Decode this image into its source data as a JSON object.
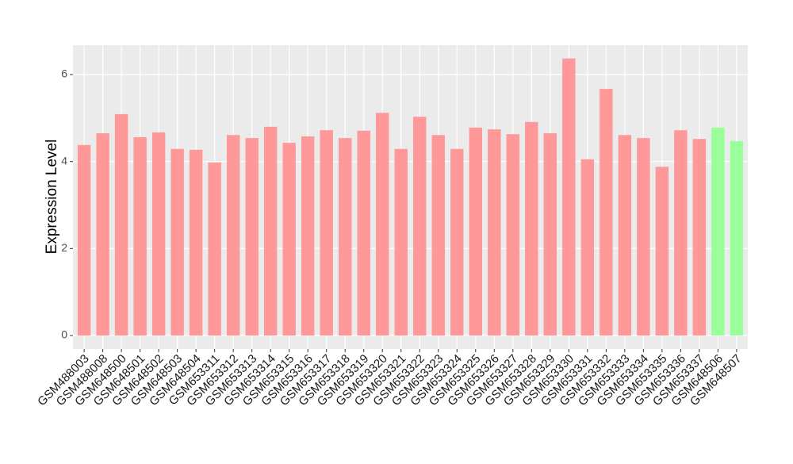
{
  "chart_data": {
    "type": "bar",
    "y_label": "Expression Level",
    "categories": [
      "GSM488003",
      "GSM488008",
      "GSM648500",
      "GSM648501",
      "GSM648502",
      "GSM648503",
      "GSM648504",
      "GSM653311",
      "GSM653312",
      "GSM653313",
      "GSM653314",
      "GSM653315",
      "GSM653316",
      "GSM653317",
      "GSM653318",
      "GSM653319",
      "GSM653320",
      "GSM653321",
      "GSM653322",
      "GSM653323",
      "GSM653324",
      "GSM653325",
      "GSM653326",
      "GSM653327",
      "GSM653328",
      "GSM653329",
      "GSM653330",
      "GSM653331",
      "GSM653332",
      "GSM653333",
      "GSM653334",
      "GSM653335",
      "GSM653336",
      "GSM653337",
      "GSM648506",
      "GSM648507"
    ],
    "values": [
      4.38,
      4.65,
      5.09,
      4.56,
      4.67,
      4.29,
      4.27,
      3.98,
      4.61,
      4.54,
      4.8,
      4.43,
      4.58,
      4.72,
      4.54,
      4.71,
      5.12,
      4.29,
      5.03,
      4.61,
      4.29,
      4.78,
      4.74,
      4.63,
      4.91,
      4.65,
      6.37,
      4.05,
      5.67,
      4.61,
      4.54,
      3.88,
      4.72,
      4.52,
      4.78,
      4.47
    ],
    "colors": [
      "#ff9999",
      "#ff9999",
      "#ff9999",
      "#ff9999",
      "#ff9999",
      "#ff9999",
      "#ff9999",
      "#ff9999",
      "#ff9999",
      "#ff9999",
      "#ff9999",
      "#ff9999",
      "#ff9999",
      "#ff9999",
      "#ff9999",
      "#ff9999",
      "#ff9999",
      "#ff9999",
      "#ff9999",
      "#ff9999",
      "#ff9999",
      "#ff9999",
      "#ff9999",
      "#ff9999",
      "#ff9999",
      "#ff9999",
      "#ff9999",
      "#ff9999",
      "#ff9999",
      "#ff9999",
      "#ff9999",
      "#ff9999",
      "#ff9999",
      "#ff9999",
      "#99ff99",
      "#99ff99"
    ],
    "ylim": [
      -0.31,
      6.675
    ],
    "yticks": [
      0,
      2,
      4,
      6
    ],
    "grid": true
  }
}
